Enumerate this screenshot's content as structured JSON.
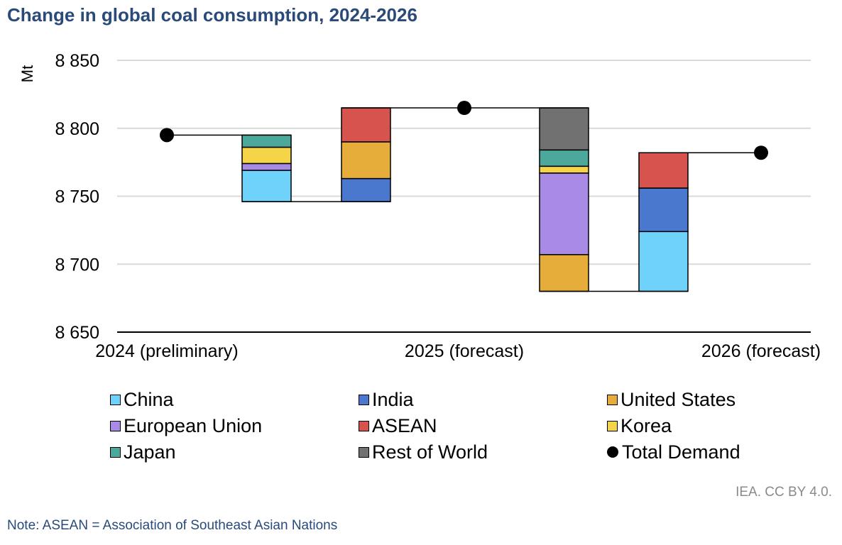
{
  "chart_data": {
    "type": "waterfall",
    "title": "Change in global coal consumption, 2024-2026",
    "ylabel": "Mt",
    "ylim": [
      8650,
      8850
    ],
    "yticks": [
      8650,
      8700,
      8750,
      8800,
      8850
    ],
    "ytick_labels": [
      "8 650",
      "8 700",
      "8 750",
      "8 800",
      "8 850"
    ],
    "categories": [
      "2024 (preliminary)",
      "2025 (forecast)",
      "2026 (forecast)"
    ],
    "totals": [
      {
        "label": "2024 (preliminary)",
        "value": 8795
      },
      {
        "label": "2025 (forecast)",
        "value": 8815
      },
      {
        "label": "2026 (forecast)",
        "value": 8782
      }
    ],
    "segments": [
      {
        "period": "2024-2025",
        "group": "declines",
        "base": 8795,
        "bars": [
          {
            "series": "Japan",
            "value": -9
          },
          {
            "series": "Korea",
            "value": -12
          },
          {
            "series": "European Union",
            "value": -5
          },
          {
            "series": "China",
            "value": -23
          }
        ]
      },
      {
        "period": "2024-2025",
        "group": "increases",
        "base": 8746,
        "bars": [
          {
            "series": "India",
            "value": 17
          },
          {
            "series": "United States",
            "value": 27
          },
          {
            "series": "ASEAN",
            "value": 25
          }
        ]
      },
      {
        "period": "2025-2026",
        "group": "declines",
        "base": 8815,
        "bars": [
          {
            "series": "Rest of World",
            "value": -31
          },
          {
            "series": "Japan",
            "value": -12
          },
          {
            "series": "Korea",
            "value": -5
          },
          {
            "series": "European Union",
            "value": -60
          },
          {
            "series": "United States",
            "value": -27
          }
        ]
      },
      {
        "period": "2025-2026",
        "group": "increases",
        "base": 8680,
        "bars": [
          {
            "series": "China",
            "value": 44
          },
          {
            "series": "India",
            "value": 32
          },
          {
            "series": "ASEAN",
            "value": 26
          }
        ]
      }
    ],
    "series_colors": {
      "China": "#6fd2fb",
      "India": "#4a78cf",
      "United States": "#e6ad3a",
      "European Union": "#a98be6",
      "ASEAN": "#d6534e",
      "Korea": "#f5d447",
      "Japan": "#4ba89b",
      "Rest of World": "#717171",
      "Total Demand": "#000000"
    },
    "legend": [
      "China",
      "India",
      "United States",
      "European Union",
      "ASEAN",
      "Korea",
      "Japan",
      "Rest of World",
      "Total Demand"
    ]
  },
  "source": "IEA. CC BY 4.0.",
  "note": "Note: ASEAN = Association of Southeast Asian Nations"
}
